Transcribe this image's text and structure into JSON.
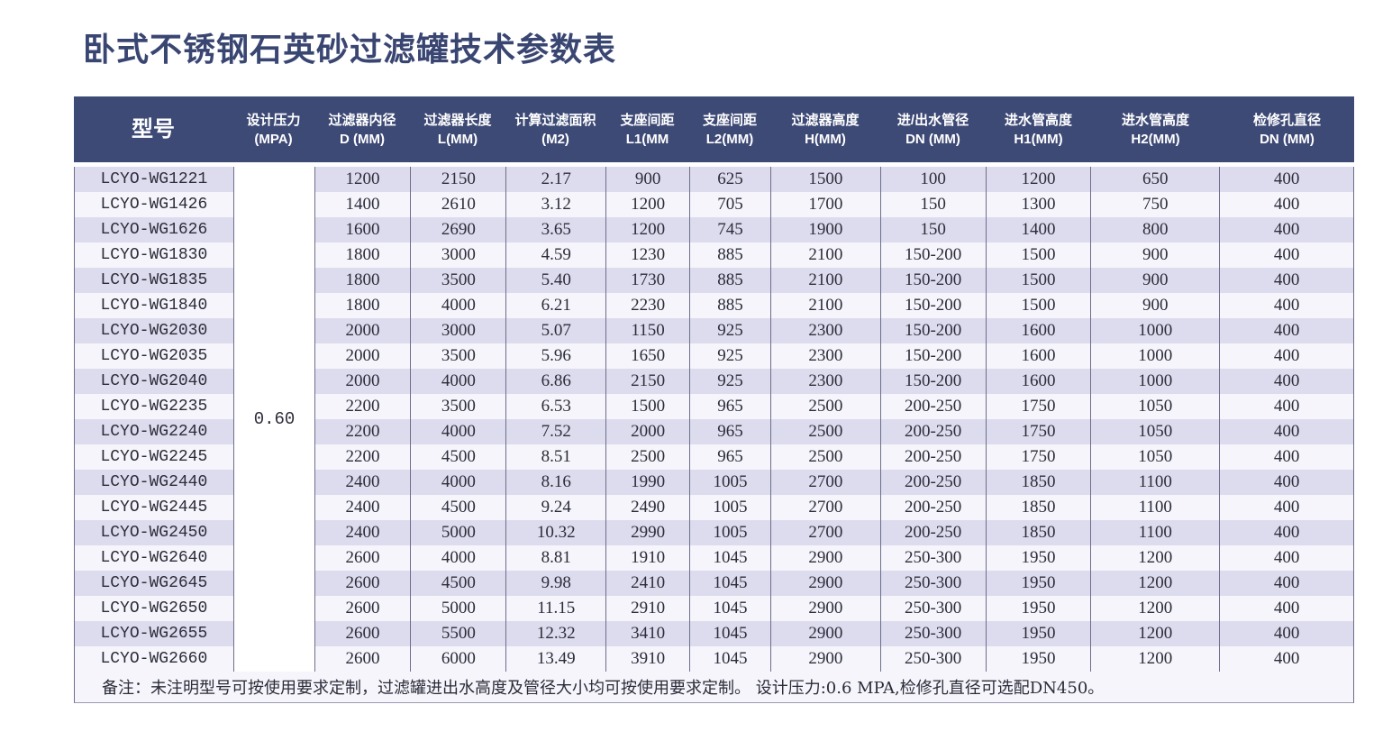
{
  "title": "卧式不锈钢石英砂过滤罐技术参数表",
  "headers": [
    [
      "型号"
    ],
    [
      "设计压力",
      "(MPA)"
    ],
    [
      "过滤器内径",
      "D (MM)"
    ],
    [
      "过滤器长度",
      "L(MM)"
    ],
    [
      "计算过滤面积",
      "(M2)"
    ],
    [
      "支座间距",
      "L1(MM"
    ],
    [
      "支座间距",
      "L2(MM)"
    ],
    [
      "过滤器高度",
      "H(MM)"
    ],
    [
      "进/出水管径",
      "DN (MM)"
    ],
    [
      "进水管高度",
      "H1(MM)"
    ],
    [
      "进水管高度",
      "H2(MM)"
    ],
    [
      "检修孔直径",
      "DN (MM)"
    ]
  ],
  "pressure": "0.60",
  "rows": [
    [
      "LCYO-WG1221",
      "1200",
      "2150",
      "2.17",
      "900",
      "625",
      "1500",
      "100",
      "1200",
      "650",
      "400"
    ],
    [
      "LCYO-WG1426",
      "1400",
      "2610",
      "3.12",
      "1200",
      "705",
      "1700",
      "150",
      "1300",
      "750",
      "400"
    ],
    [
      "LCYO-WG1626",
      "1600",
      "2690",
      "3.65",
      "1200",
      "745",
      "1900",
      "150",
      "1400",
      "800",
      "400"
    ],
    [
      "LCYO-WG1830",
      "1800",
      "3000",
      "4.59",
      "1230",
      "885",
      "2100",
      "150-200",
      "1500",
      "900",
      "400"
    ],
    [
      "LCYO-WG1835",
      "1800",
      "3500",
      "5.40",
      "1730",
      "885",
      "2100",
      "150-200",
      "1500",
      "900",
      "400"
    ],
    [
      "LCYO-WG1840",
      "1800",
      "4000",
      "6.21",
      "2230",
      "885",
      "2100",
      "150-200",
      "1500",
      "900",
      "400"
    ],
    [
      "LCYO-WG2030",
      "2000",
      "3000",
      "5.07",
      "1150",
      "925",
      "2300",
      "150-200",
      "1600",
      "1000",
      "400"
    ],
    [
      "LCYO-WG2035",
      "2000",
      "3500",
      "5.96",
      "1650",
      "925",
      "2300",
      "150-200",
      "1600",
      "1000",
      "400"
    ],
    [
      "LCYO-WG2040",
      "2000",
      "4000",
      "6.86",
      "2150",
      "925",
      "2300",
      "150-200",
      "1600",
      "1000",
      "400"
    ],
    [
      "LCYO-WG2235",
      "2200",
      "3500",
      "6.53",
      "1500",
      "965",
      "2500",
      "200-250",
      "1750",
      "1050",
      "400"
    ],
    [
      "LCYO-WG2240",
      "2200",
      "4000",
      "7.52",
      "2000",
      "965",
      "2500",
      "200-250",
      "1750",
      "1050",
      "400"
    ],
    [
      "LCYO-WG2245",
      "2200",
      "4500",
      "8.51",
      "2500",
      "965",
      "2500",
      "200-250",
      "1750",
      "1050",
      "400"
    ],
    [
      "LCYO-WG2440",
      "2400",
      "4000",
      "8.16",
      "1990",
      "1005",
      "2700",
      "200-250",
      "1850",
      "1100",
      "400"
    ],
    [
      "LCYO-WG2445",
      "2400",
      "4500",
      "9.24",
      "2490",
      "1005",
      "2700",
      "200-250",
      "1850",
      "1100",
      "400"
    ],
    [
      "LCYO-WG2450",
      "2400",
      "5000",
      "10.32",
      "2990",
      "1005",
      "2700",
      "200-250",
      "1850",
      "1100",
      "400"
    ],
    [
      "LCYO-WG2640",
      "2600",
      "4000",
      "8.81",
      "1910",
      "1045",
      "2900",
      "250-300",
      "1950",
      "1200",
      "400"
    ],
    [
      "LCYO-WG2645",
      "2600",
      "4500",
      "9.98",
      "2410",
      "1045",
      "2900",
      "250-300",
      "1950",
      "1200",
      "400"
    ],
    [
      "LCYO-WG2650",
      "2600",
      "5000",
      "11.15",
      "2910",
      "1045",
      "2900",
      "250-300",
      "1950",
      "1200",
      "400"
    ],
    [
      "LCYO-WG2655",
      "2600",
      "5500",
      "12.32",
      "3410",
      "1045",
      "2900",
      "250-300",
      "1950",
      "1200",
      "400"
    ],
    [
      "LCYO-WG2660",
      "2600",
      "6000",
      "13.49",
      "3910",
      "1045",
      "2900",
      "250-300",
      "1950",
      "1200",
      "400"
    ]
  ],
  "note": "备注：未注明型号可按使用要求定制，过滤罐进出水高度及管径大小均可按使用要求定制。 设计压力:0.6 MPA,检修孔直径可选配DN450。"
}
